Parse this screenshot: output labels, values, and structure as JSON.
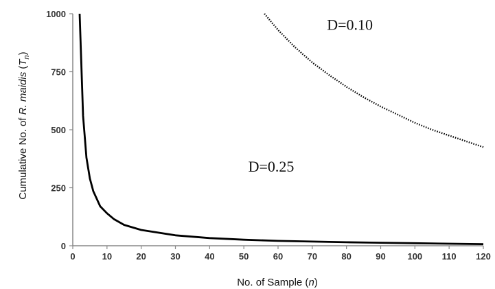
{
  "chart_data": {
    "type": "line",
    "title": "",
    "xlabel": "No. of Sample (n)",
    "ylabel": "Cumulative No. of R. maidis (Tn)",
    "xlabel_parts": {
      "main": "No. of Sample (",
      "italic": "n",
      "tail": ")"
    },
    "ylabel_parts": {
      "main": "Cumulative No. of ",
      "italic": "R. maidis",
      "sub_open": " (",
      "sub_italic": "T",
      "sub_index": "n",
      "tail": ")"
    },
    "xlim": [
      0,
      120
    ],
    "ylim": [
      0,
      1000
    ],
    "xticks": [
      0,
      10,
      20,
      30,
      40,
      50,
      60,
      70,
      80,
      90,
      100,
      110,
      120
    ],
    "yticks": [
      0,
      250,
      500,
      750,
      1000
    ],
    "grid": false,
    "legend": "none",
    "series": [
      {
        "name": "D=0.25",
        "style": "solid",
        "color": "#000000",
        "x": [
          2,
          3,
          4,
          5,
          6,
          8,
          10,
          12,
          15,
          20,
          30,
          40,
          50,
          60,
          70,
          80,
          90,
          100,
          110,
          120
        ],
        "y": [
          1000,
          560,
          380,
          290,
          235,
          170,
          140,
          115,
          90,
          68,
          45,
          33,
          26,
          21,
          18,
          15,
          13,
          11,
          9,
          7
        ]
      },
      {
        "name": "D=0.10",
        "style": "dotted",
        "color": "#000000",
        "x": [
          56,
          60,
          65,
          70,
          75,
          80,
          85,
          90,
          95,
          100,
          105,
          110,
          115,
          120
        ],
        "y": [
          1000,
          930,
          855,
          790,
          735,
          685,
          640,
          600,
          565,
          530,
          500,
          475,
          450,
          425
        ]
      }
    ],
    "annotations": [
      {
        "text": "D=0.10",
        "x": 81,
        "y": 930
      },
      {
        "text": "D=0.25",
        "x": 58,
        "y": 320
      }
    ]
  }
}
